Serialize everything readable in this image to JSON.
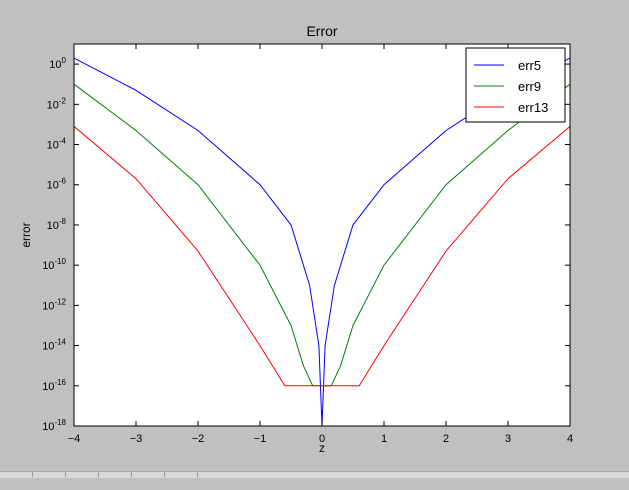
{
  "chart_data": {
    "type": "line",
    "title": "Error",
    "xlabel": "z",
    "ylabel": "error",
    "xlim": [
      -4,
      4
    ],
    "yscale": "log",
    "ylim": [
      1e-18,
      10
    ],
    "x_ticks": [
      "−4",
      "−3",
      "−2",
      "−1",
      "0",
      "1",
      "2",
      "3",
      "4"
    ],
    "y_ticks": [
      {
        "base": "10",
        "exp": "0"
      },
      {
        "base": "10",
        "exp": "-2"
      },
      {
        "base": "10",
        "exp": "-4"
      },
      {
        "base": "10",
        "exp": "-6"
      },
      {
        "base": "10",
        "exp": "-8"
      },
      {
        "base": "10",
        "exp": "-10"
      },
      {
        "base": "10",
        "exp": "-12"
      },
      {
        "base": "10",
        "exp": "-14"
      },
      {
        "base": "10",
        "exp": "-16"
      },
      {
        "base": "10",
        "exp": "-18"
      }
    ],
    "legend_position": "top-right",
    "series": [
      {
        "name": "err5",
        "color": "#0000ff",
        "x": [
          -4.0,
          -3.0,
          -2.0,
          -1.0,
          -0.5,
          -0.2,
          -0.05,
          0.0,
          0.05,
          0.2,
          0.5,
          1.0,
          2.0,
          3.0,
          4.0
        ],
        "y": [
          2,
          0.05,
          0.0005,
          1e-06,
          1e-08,
          1e-11,
          1e-14,
          1e-18,
          1e-14,
          1e-11,
          1e-08,
          1e-06,
          0.0005,
          0.05,
          2
        ]
      },
      {
        "name": "err9",
        "color": "#008000",
        "x": [
          -4.0,
          -3.0,
          -2.0,
          -1.0,
          -0.5,
          -0.3,
          -0.15,
          0.15,
          0.3,
          0.5,
          1.0,
          2.0,
          3.0,
          4.0
        ],
        "y": [
          0.1,
          0.0005,
          1e-06,
          1e-10,
          1e-13,
          1e-15,
          1e-16,
          1e-16,
          1e-15,
          1e-13,
          1e-10,
          1e-06,
          0.0005,
          0.1
        ]
      },
      {
        "name": "err13",
        "color": "#ff0000",
        "x": [
          -4.0,
          -3.0,
          -2.0,
          -1.0,
          -0.6,
          0.6,
          1.0,
          2.0,
          3.0,
          4.0
        ],
        "y": [
          0.0008,
          2e-06,
          5e-10,
          1e-14,
          1e-16,
          1e-16,
          1e-14,
          5e-10,
          2e-06,
          0.0008
        ]
      }
    ]
  }
}
